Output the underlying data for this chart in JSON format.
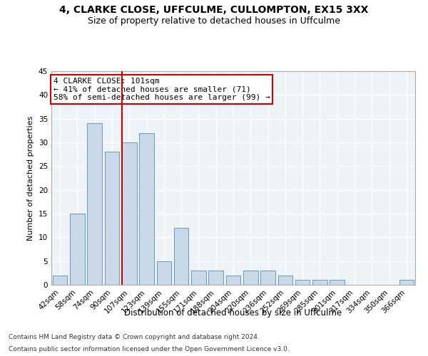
{
  "title1": "4, CLARKE CLOSE, UFFCULME, CULLOMPTON, EX15 3XX",
  "title2": "Size of property relative to detached houses in Uffculme",
  "xlabel": "Distribution of detached houses by size in Uffculme",
  "ylabel": "Number of detached properties",
  "categories": [
    "42sqm",
    "58sqm",
    "74sqm",
    "90sqm",
    "107sqm",
    "123sqm",
    "139sqm",
    "155sqm",
    "171sqm",
    "188sqm",
    "204sqm",
    "220sqm",
    "236sqm",
    "252sqm",
    "269sqm",
    "285sqm",
    "301sqm",
    "317sqm",
    "334sqm",
    "350sqm",
    "366sqm"
  ],
  "values": [
    2,
    15,
    34,
    28,
    30,
    32,
    5,
    12,
    3,
    3,
    2,
    3,
    3,
    2,
    1,
    1,
    1,
    0,
    0,
    0,
    1
  ],
  "bar_color": "#c9d9e8",
  "bar_edge_color": "#6699bb",
  "annotation_text1": "4 CLARKE CLOSE: 101sqm",
  "annotation_text2": "← 41% of detached houses are smaller (71)",
  "annotation_text3": "58% of semi-detached houses are larger (99) →",
  "box_color": "#cc0000",
  "vline_x": 3.575,
  "ylim": [
    0,
    45
  ],
  "yticks": [
    0,
    5,
    10,
    15,
    20,
    25,
    30,
    35,
    40,
    45
  ],
  "footer1": "Contains HM Land Registry data © Crown copyright and database right 2024.",
  "footer2": "Contains public sector information licensed under the Open Government Licence v3.0.",
  "bg_color": "#eef3f8",
  "grid_color": "#ffffff",
  "title1_fontsize": 10,
  "title2_fontsize": 9,
  "xlabel_fontsize": 8.5,
  "ylabel_fontsize": 8,
  "tick_fontsize": 7.5,
  "annotation_fontsize": 8,
  "footer_fontsize": 6.5
}
